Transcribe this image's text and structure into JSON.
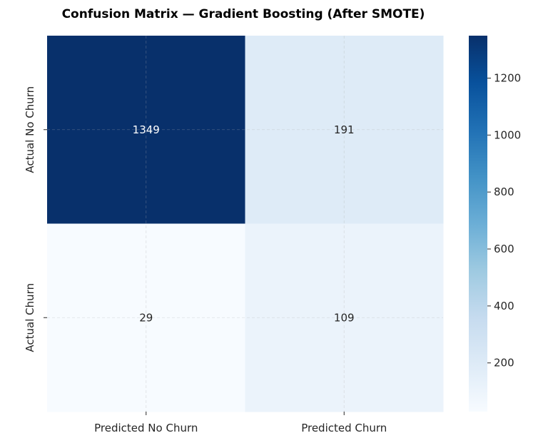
{
  "chart_data": {
    "type": "heatmap",
    "title": "Confusion Matrix — Gradient Boosting (After SMOTE)",
    "x_categories": [
      "Predicted No Churn",
      "Predicted Churn"
    ],
    "y_categories": [
      "Actual No Churn",
      "Actual Churn"
    ],
    "values": [
      [
        1349,
        191
      ],
      [
        29,
        109
      ]
    ],
    "colormap": "Blues",
    "colorbar": {
      "ticks": [
        200,
        400,
        600,
        800,
        1000,
        1200
      ],
      "range": [
        29,
        1349
      ]
    },
    "grid": true,
    "colors": {
      "low": "#f7fbff",
      "high": "#08306b",
      "text_dark": "#262626",
      "text_light": "#ffffff"
    }
  }
}
